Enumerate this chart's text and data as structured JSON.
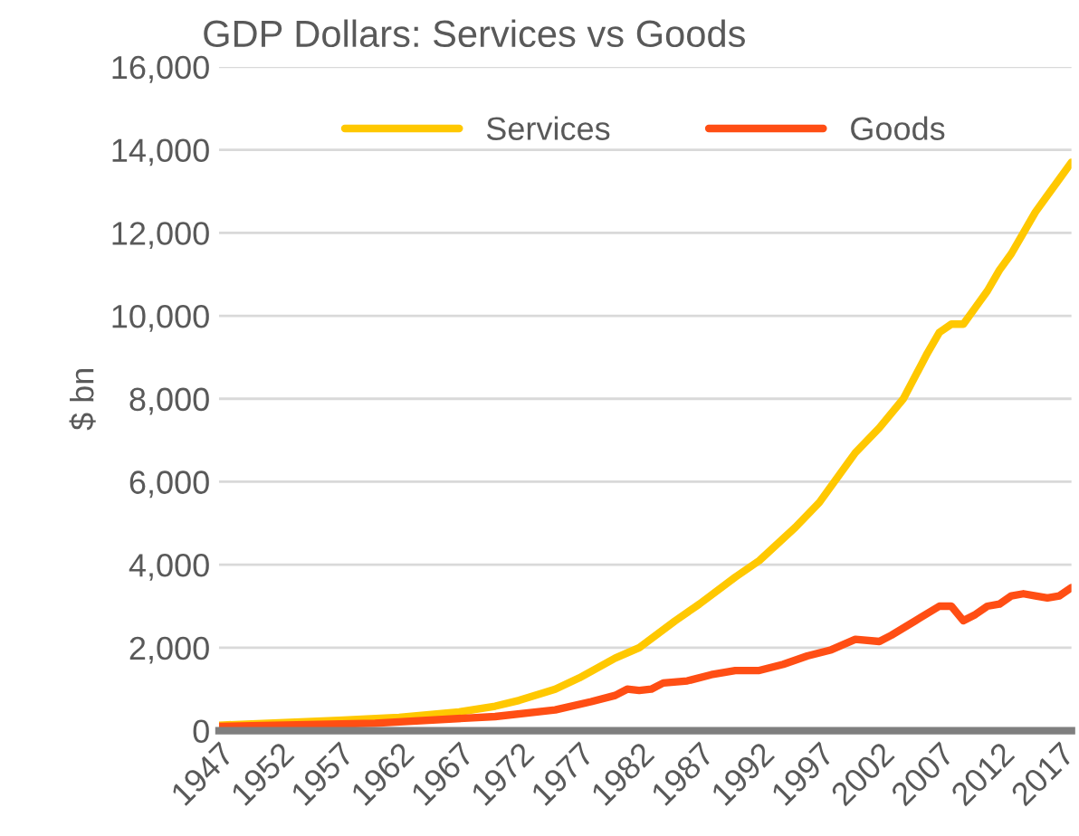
{
  "chart_data": {
    "type": "line",
    "title": "GDP Dollars: Services vs Goods",
    "ylabel": "$ bn",
    "xlim": [
      1947,
      2018
    ],
    "xticks": [
      1947,
      1952,
      1957,
      1962,
      1967,
      1972,
      1977,
      1982,
      1987,
      1992,
      1997,
      2002,
      2007,
      2012,
      2017
    ],
    "ylim": [
      0,
      16000
    ],
    "yticks": [
      {
        "value": 0,
        "label": "0"
      },
      {
        "value": 2000,
        "label": "2,000"
      },
      {
        "value": 4000,
        "label": "4,000"
      },
      {
        "value": 6000,
        "label": "6,000"
      },
      {
        "value": 8000,
        "label": "8,000"
      },
      {
        "value": 10000,
        "label": "10,000"
      },
      {
        "value": 12000,
        "label": "12,000"
      },
      {
        "value": 14000,
        "label": "14,000"
      },
      {
        "value": 16000,
        "label": "16,000"
      }
    ],
    "grid": "y",
    "legend": "top",
    "line_style": "solid",
    "series": [
      {
        "name": "Services",
        "color": "#ffc800",
        "x": [
          1947,
          1952,
          1957,
          1962,
          1967,
          1970,
          1972,
          1975,
          1977,
          1980,
          1982,
          1985,
          1987,
          1990,
          1992,
          1995,
          1997,
          2000,
          2002,
          2004,
          2006,
          2007,
          2008,
          2009,
          2010,
          2011,
          2012,
          2013,
          2014,
          2015,
          2016,
          2017,
          2018
        ],
        "values": [
          130,
          190,
          250,
          320,
          450,
          590,
          730,
          1000,
          1270,
          1750,
          2000,
          2650,
          3050,
          3700,
          4100,
          4900,
          5500,
          6700,
          7300,
          8000,
          9100,
          9600,
          9800,
          9800,
          10200,
          10600,
          11100,
          11500,
          12000,
          12500,
          12900,
          13300,
          13700
        ]
      },
      {
        "name": "Goods",
        "color": "#ff4e14",
        "x": [
          1947,
          1960,
          1970,
          1975,
          1978,
          1980,
          1981,
          1982,
          1983,
          1984,
          1986,
          1988,
          1990,
          1992,
          1994,
          1996,
          1998,
          2000,
          2002,
          2003,
          2005,
          2007,
          2008,
          2009,
          2010,
          2011,
          2012,
          2013,
          2014,
          2015,
          2016,
          2017,
          2018
        ],
        "values": [
          100,
          180,
          340,
          500,
          700,
          850,
          1000,
          970,
          1000,
          1150,
          1200,
          1350,
          1450,
          1450,
          1600,
          1800,
          1950,
          2200,
          2150,
          2300,
          2650,
          3000,
          3000,
          2650,
          2800,
          3000,
          3050,
          3250,
          3300,
          3250,
          3200,
          3250,
          3450
        ]
      }
    ]
  }
}
